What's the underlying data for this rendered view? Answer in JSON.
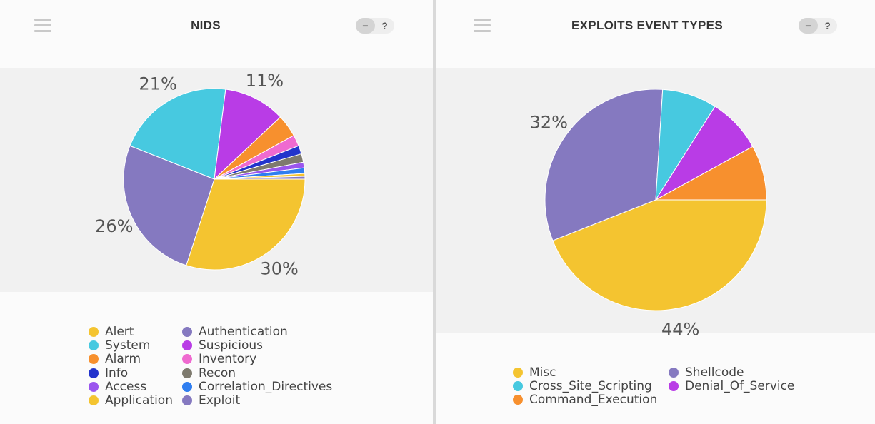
{
  "chart_data": [
    {
      "type": "pie",
      "title": "NIDS",
      "labels": [
        "Alert",
        "System",
        "Alarm",
        "Info",
        "Access",
        "Application",
        "Authentication",
        "Suspicious",
        "Inventory",
        "Recon",
        "Correlation_Directives",
        "Exploit"
      ],
      "values": [
        30,
        21,
        4,
        1.5,
        1,
        0.5,
        26,
        11,
        2,
        1.5,
        1,
        0.5
      ],
      "colors": [
        "#f4c430",
        "#47c9e0",
        "#f7902e",
        "#2233cc",
        "#9a55ee",
        "#f4c430",
        "#8579c0",
        "#b93ce6",
        "#ef6ad0",
        "#7e7a6e",
        "#2f7ef0",
        "#8579c0"
      ],
      "slice_order": [
        "Alert",
        "Authentication",
        "System",
        "Suspicious",
        "Alarm",
        "Inventory",
        "Info",
        "Recon",
        "Access",
        "Correlation_Directives",
        "Application",
        "Exploit"
      ],
      "data_labels": [
        {
          "name": "Alert",
          "text": "30%"
        },
        {
          "name": "Authentication",
          "text": "26%"
        },
        {
          "name": "System",
          "text": "21%"
        },
        {
          "name": "Suspicious",
          "text": "11%"
        }
      ],
      "legend_columns": [
        [
          "Alert",
          "System",
          "Alarm",
          "Info",
          "Access",
          "Application"
        ],
        [
          "Authentication",
          "Suspicious",
          "Inventory",
          "Recon",
          "Correlation_Directives",
          "Exploit"
        ]
      ],
      "legend_position": "bottom"
    },
    {
      "type": "pie",
      "title": "EXPLOITS EVENT TYPES",
      "labels": [
        "Misc",
        "Cross_Site_Scripting",
        "Command_Execution",
        "Shellcode",
        "Denial_Of_Service"
      ],
      "values": [
        44,
        8,
        8,
        32,
        8
      ],
      "colors": [
        "#f4c430",
        "#47c9e0",
        "#f7902e",
        "#8579c0",
        "#b93ce6"
      ],
      "slice_order": [
        "Misc",
        "Shellcode",
        "Cross_Site_Scripting",
        "Denial_Of_Service",
        "Command_Execution"
      ],
      "data_labels": [
        {
          "name": "Misc",
          "text": "44%"
        },
        {
          "name": "Shellcode",
          "text": "32%"
        }
      ],
      "legend_columns": [
        [
          "Misc",
          "Cross_Site_Scripting",
          "Command_Execution"
        ],
        [
          "Shellcode",
          "Denial_Of_Service"
        ]
      ],
      "legend_position": "bottom"
    }
  ],
  "controls": {
    "minimize_label": "−",
    "help_label": "?",
    "menu_icon": "hamburger-menu-icon"
  },
  "colors": {
    "panel_background": "#fbfbfb",
    "chart_background": "#f1f1f1"
  }
}
